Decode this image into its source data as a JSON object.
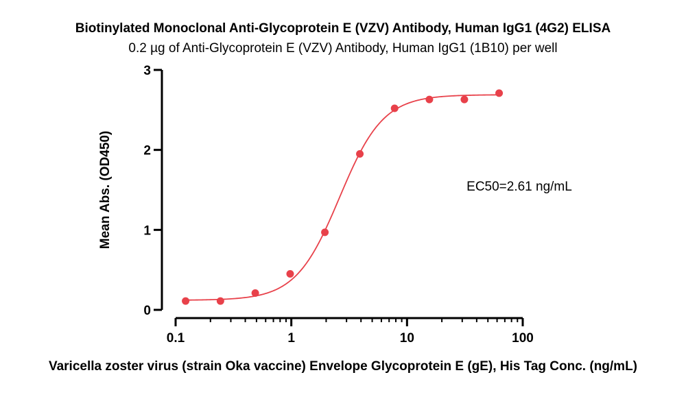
{
  "chart_data": {
    "type": "scatter",
    "title": "Biotinylated Monoclonal Anti-Glycoprotein E (VZV) Antibody, Human IgG1 (4G2) ELISA",
    "subtitle": "0.2 µg of Anti-Glycoprotein E (VZV) Antibody, Human IgG1 (1B10) per well",
    "xlabel": "Varicella zoster virus (strain Oka vaccine) Envelope Glycoprotein E (gE), His Tag Conc. (ng/mL)",
    "ylabel": "Mean Abs. (OD450)",
    "x_scale": "log",
    "xlim": [
      0.1,
      100
    ],
    "ylim": [
      0,
      3
    ],
    "x_ticks": [
      0.1,
      1,
      10,
      100
    ],
    "x_tick_labels": [
      "0.1",
      "1",
      "10",
      "100"
    ],
    "y_ticks": [
      0,
      1,
      2,
      3
    ],
    "y_tick_labels": [
      "0",
      "1",
      "2",
      "3"
    ],
    "grid": false,
    "colors": {
      "points": "#e8414a",
      "fit_line": "#e8414a",
      "axes": "#000000"
    },
    "points": {
      "x": [
        0.122,
        0.244,
        0.488,
        0.977,
        1.95,
        3.91,
        7.81,
        15.6,
        31.3,
        62.5
      ],
      "y": [
        0.11,
        0.11,
        0.21,
        0.45,
        0.97,
        1.95,
        2.52,
        2.63,
        2.63,
        2.71
      ]
    },
    "fit": {
      "model": "4PL",
      "bottom": 0.12,
      "top": 2.69,
      "ec50": 2.61,
      "hill": 2.3
    },
    "annotation": "EC50=2.61 ng/mL"
  }
}
